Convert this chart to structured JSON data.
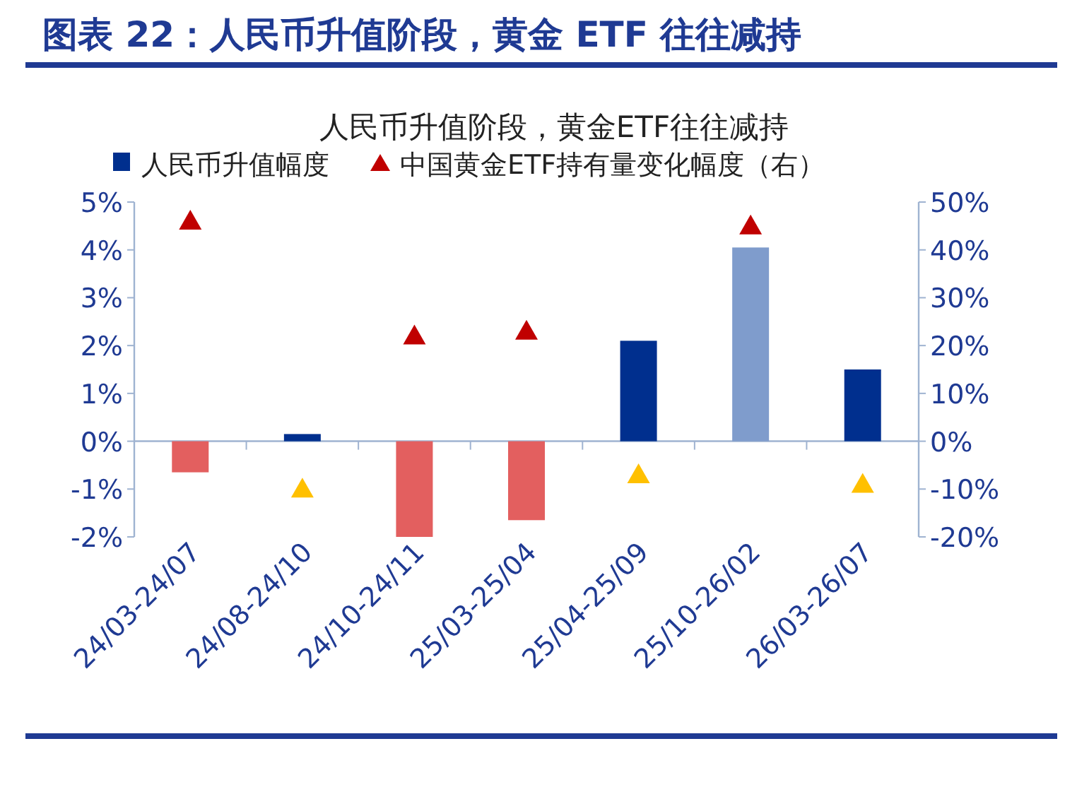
{
  "chart_data": {
    "type": "bar",
    "title": "图表 22：人民币升值阶段，黄金 ETF 往往减持",
    "subtitle": "人民币升值阶段，黄金ETF往往减持",
    "categories": [
      "24/03-24/07",
      "24/08-24/10",
      "24/10-24/11",
      "25/03-25/04",
      "25/04-25/09",
      "25/10-26/02",
      "26/03-26/07"
    ],
    "series": [
      {
        "name": "人民币升值幅度",
        "color": "#002f8e",
        "colors": [
          "#e35f5f",
          "#002f8e",
          "#e35f5f",
          "#e35f5f",
          "#002f8e",
          "#7f9ccc",
          "#002f8e"
        ],
        "values": [
          -0.65,
          0.15,
          -2.0,
          -1.65,
          2.1,
          4.05,
          1.5
        ]
      },
      {
        "name": "中国黄金ETF持有量变化幅度（右）",
        "type": "scatter",
        "axis": "y2",
        "marker": "triangle",
        "color": "#c00000",
        "colors": [
          "#c00000",
          "#ffc000",
          "#c00000",
          "#c00000",
          "#ffc000",
          "#c00000",
          "#ffc000"
        ],
        "values": [
          46,
          -10,
          22,
          23,
          -7,
          45,
          -9
        ]
      }
    ],
    "ylim": [
      -2,
      5
    ],
    "yticks": [
      {
        "value": -2,
        "label": "-2%"
      },
      {
        "value": -1,
        "label": "-1%"
      },
      {
        "value": 0,
        "label": "0%"
      },
      {
        "value": 1,
        "label": "1%"
      },
      {
        "value": 2,
        "label": "2%"
      },
      {
        "value": 3,
        "label": "3%"
      },
      {
        "value": 4,
        "label": "4%"
      },
      {
        "value": 5,
        "label": "5%"
      }
    ],
    "y2lim": [
      -20,
      50
    ],
    "y2ticks": [
      {
        "value": -20,
        "label": "-20%"
      },
      {
        "value": -10,
        "label": "-10%"
      },
      {
        "value": 0,
        "label": "0%"
      },
      {
        "value": 10,
        "label": "10%"
      },
      {
        "value": 20,
        "label": "20%"
      },
      {
        "value": 30,
        "label": "30%"
      },
      {
        "value": 40,
        "label": "40%"
      },
      {
        "value": 50,
        "label": "50%"
      }
    ],
    "ref_lines": [
      {
        "axis": "y",
        "value": 0,
        "color": "#9fb3d1"
      }
    ],
    "legend": "top"
  }
}
